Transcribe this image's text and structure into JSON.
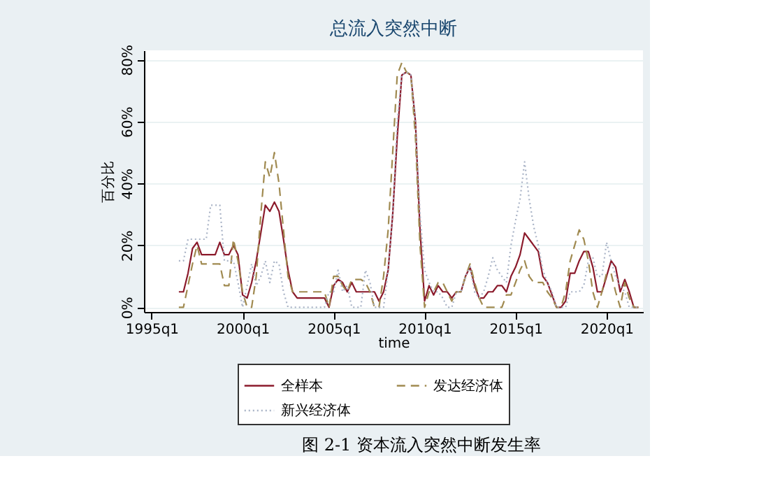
{
  "chart_data": {
    "type": "line",
    "title": "总流入突然中断",
    "xlabel": "time",
    "ylabel": "百分比",
    "annotations": [
      "图 2-1 资本流入突然中断发生率"
    ],
    "x": [
      "1996-07",
      "1996-10",
      "1997-01",
      "1997-04",
      "1997-07",
      "1997-10",
      "1998-01",
      "1998-04",
      "1998-07",
      "1998-10",
      "1999-01",
      "1999-04",
      "1999-07",
      "1999-10",
      "2000-01",
      "2000-04",
      "2000-07",
      "2000-10",
      "2001-01",
      "2001-04",
      "2001-07",
      "2001-10",
      "2002-01",
      "2002-04",
      "2002-07",
      "2002-10",
      "2003-01",
      "2003-04",
      "2003-07",
      "2003-10",
      "2004-01",
      "2004-04",
      "2004-07",
      "2004-10",
      "2005-01",
      "2005-04",
      "2005-07",
      "2005-10",
      "2006-01",
      "2006-04",
      "2006-07",
      "2006-10",
      "2007-01",
      "2007-04",
      "2007-07",
      "2007-10",
      "2008-01",
      "2008-04",
      "2008-07",
      "2008-10",
      "2009-01",
      "2009-04",
      "2009-07",
      "2009-10",
      "2010-01",
      "2010-04",
      "2010-07",
      "2010-10",
      "2011-01",
      "2011-04",
      "2011-07",
      "2011-10",
      "2012-01",
      "2012-04",
      "2012-07",
      "2012-10",
      "2013-01",
      "2013-04",
      "2013-07",
      "2013-10",
      "2014-01",
      "2014-04",
      "2014-07",
      "2014-10",
      "2015-01",
      "2015-04",
      "2015-07",
      "2015-10",
      "2016-01",
      "2016-04",
      "2016-07",
      "2016-10",
      "2017-01",
      "2017-04",
      "2017-07",
      "2017-10",
      "2018-01",
      "2018-04",
      "2018-07",
      "2018-10",
      "2019-01",
      "2019-04",
      "2019-07",
      "2019-10",
      "2020-01",
      "2020-04",
      "2020-07",
      "2020-10",
      "2021-01",
      "2021-04",
      "2021-07",
      "2021-10"
    ],
    "series": [
      {
        "name": "全样本",
        "color": "#8b1a2b",
        "line_style": "solid",
        "values": [
          5,
          5,
          11,
          19,
          21,
          17,
          17,
          17,
          17,
          21,
          17,
          17,
          20,
          17,
          4,
          3,
          8,
          15,
          24,
          33,
          31,
          34,
          31,
          22,
          12,
          5,
          3,
          3,
          3,
          3,
          3,
          3,
          3,
          0,
          7,
          9,
          8,
          5,
          8,
          5,
          5,
          5,
          5,
          5,
          2,
          5,
          12,
          30,
          55,
          75,
          76,
          75,
          60,
          25,
          2,
          7,
          4,
          7,
          5,
          5,
          3,
          5,
          5,
          10,
          13,
          7,
          3,
          3,
          5,
          5,
          7,
          7,
          5,
          10,
          13,
          17,
          24,
          22,
          20,
          18,
          10,
          8,
          4,
          0,
          0,
          2,
          11,
          11,
          15,
          18,
          18,
          13,
          5,
          5,
          10,
          15,
          13,
          5,
          9,
          5,
          0,
          0
        ]
      },
      {
        "name": "发达经济体",
        "color": "#a08a50",
        "line_style": "dashed",
        "values": [
          0,
          0,
          7,
          14,
          20,
          14,
          14,
          14,
          14,
          14,
          7,
          7,
          22,
          15,
          5,
          0,
          0,
          10,
          30,
          47,
          42,
          50,
          40,
          25,
          10,
          5,
          5,
          5,
          5,
          5,
          5,
          5,
          5,
          0,
          10,
          10,
          7,
          5,
          9,
          9,
          9,
          8,
          5,
          0,
          0,
          10,
          25,
          50,
          75,
          79,
          76,
          75,
          55,
          20,
          0,
          5,
          5,
          8,
          8,
          5,
          2,
          5,
          5,
          10,
          14,
          8,
          3,
          0,
          0,
          0,
          0,
          0,
          4,
          4,
          8,
          12,
          15,
          10,
          8,
          8,
          8,
          5,
          3,
          0,
          0,
          5,
          15,
          20,
          25,
          22,
          15,
          5,
          0,
          5,
          11,
          11,
          5,
          0,
          8,
          3,
          0,
          0
        ]
      },
      {
        "name": "新兴经济体",
        "color": "#a9b3c6",
        "line_style": "dotted",
        "values": [
          15,
          15,
          22,
          22,
          22,
          22,
          22,
          33,
          33,
          33,
          15,
          15,
          15,
          8,
          0,
          7,
          14,
          7,
          10,
          15,
          8,
          15,
          14,
          5,
          0,
          0,
          0,
          0,
          0,
          0,
          0,
          0,
          0,
          5,
          5,
          12,
          5,
          7,
          0,
          0,
          0,
          12,
          8,
          0,
          0,
          0,
          12,
          30,
          60,
          75,
          76,
          75,
          60,
          30,
          12,
          8,
          5,
          5,
          3,
          0,
          0,
          5,
          5,
          10,
          13,
          5,
          3,
          5,
          10,
          16,
          12,
          10,
          8,
          20,
          28,
          35,
          47,
          35,
          26,
          20,
          12,
          8,
          5,
          0,
          0,
          0,
          5,
          5,
          5,
          7,
          15,
          16,
          10,
          10,
          21,
          15,
          10,
          7,
          5,
          0,
          0,
          0
        ]
      }
    ],
    "xlim": [
      "1994-08",
      "2022-01"
    ],
    "xticks": [
      {
        "value": "1995-01",
        "label": "1995q1"
      },
      {
        "value": "2000-01",
        "label": "2000q1"
      },
      {
        "value": "2005-01",
        "label": "2005q1"
      },
      {
        "value": "2010-01",
        "label": "2010q1"
      },
      {
        "value": "2015-01",
        "label": "2015q1"
      },
      {
        "value": "2020-01",
        "label": "2020q1"
      }
    ],
    "ylim": [
      -1.5,
      83
    ],
    "yticks": [
      {
        "value": 0,
        "label": "0%"
      },
      {
        "value": 20,
        "label": "20%"
      },
      {
        "value": 40,
        "label": "40%"
      },
      {
        "value": 60,
        "label": "60%"
      },
      {
        "value": 80,
        "label": "80%"
      }
    ],
    "grid": "y",
    "legend": "bottom"
  }
}
